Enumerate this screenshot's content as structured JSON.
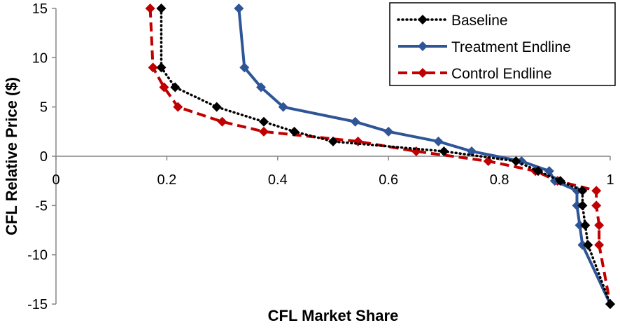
{
  "chart_data": {
    "type": "line",
    "title": "",
    "xlabel": "CFL Market Share",
    "ylabel": "CFL Relative Price ($)",
    "xlim": [
      0,
      1
    ],
    "ylim": [
      -15,
      15
    ],
    "x_ticks": [
      0,
      0.2,
      0.4,
      0.6,
      0.8,
      1
    ],
    "x_tick_labels": [
      "0",
      "0.2",
      "0.4",
      "0.6",
      "0.8",
      "1"
    ],
    "y_ticks": [
      15,
      10,
      5,
      0,
      -5,
      -10,
      -15
    ],
    "y_tick_labels": [
      "15",
      "10",
      "5",
      "0",
      "-5",
      "-10",
      "-15"
    ],
    "grid": false,
    "legend_position": "top-right",
    "series": [
      {
        "name": "Baseline",
        "color": "#000000",
        "line_style": "dotted",
        "marker": "diamond",
        "points": [
          {
            "x": 0.19,
            "y": 15
          },
          {
            "x": 0.19,
            "y": 9
          },
          {
            "x": 0.215,
            "y": 7
          },
          {
            "x": 0.29,
            "y": 5
          },
          {
            "x": 0.375,
            "y": 3.5
          },
          {
            "x": 0.43,
            "y": 2.5
          },
          {
            "x": 0.5,
            "y": 1.5
          },
          {
            "x": 0.7,
            "y": 0.5
          },
          {
            "x": 0.83,
            "y": -0.5
          },
          {
            "x": 0.87,
            "y": -1.5
          },
          {
            "x": 0.91,
            "y": -2.5
          },
          {
            "x": 0.95,
            "y": -3.5
          },
          {
            "x": 0.95,
            "y": -5
          },
          {
            "x": 0.955,
            "y": -7
          },
          {
            "x": 0.96,
            "y": -9
          },
          {
            "x": 1.0,
            "y": -15
          }
        ]
      },
      {
        "name": "Treatment Endline",
        "color": "#2e5597",
        "line_style": "solid",
        "marker": "diamond",
        "points": [
          {
            "x": 0.33,
            "y": 15
          },
          {
            "x": 0.34,
            "y": 9
          },
          {
            "x": 0.37,
            "y": 7
          },
          {
            "x": 0.41,
            "y": 5
          },
          {
            "x": 0.54,
            "y": 3.5
          },
          {
            "x": 0.6,
            "y": 2.5
          },
          {
            "x": 0.69,
            "y": 1.5
          },
          {
            "x": 0.75,
            "y": 0.5
          },
          {
            "x": 0.84,
            "y": -0.5
          },
          {
            "x": 0.89,
            "y": -1.5
          },
          {
            "x": 0.9,
            "y": -2.5
          },
          {
            "x": 0.94,
            "y": -3.5
          },
          {
            "x": 0.94,
            "y": -5
          },
          {
            "x": 0.945,
            "y": -7
          },
          {
            "x": 0.95,
            "y": -9
          },
          {
            "x": 1.0,
            "y": -15
          }
        ]
      },
      {
        "name": "Control Endline",
        "color": "#c00000",
        "line_style": "dashed",
        "marker": "diamond",
        "points": [
          {
            "x": 0.17,
            "y": 15
          },
          {
            "x": 0.175,
            "y": 9
          },
          {
            "x": 0.195,
            "y": 7
          },
          {
            "x": 0.22,
            "y": 5
          },
          {
            "x": 0.3,
            "y": 3.5
          },
          {
            "x": 0.375,
            "y": 2.5
          },
          {
            "x": 0.545,
            "y": 1.5
          },
          {
            "x": 0.65,
            "y": 0.5
          },
          {
            "x": 0.78,
            "y": -0.5
          },
          {
            "x": 0.865,
            "y": -1.5
          },
          {
            "x": 0.905,
            "y": -2.5
          },
          {
            "x": 0.975,
            "y": -3.5
          },
          {
            "x": 0.975,
            "y": -5
          },
          {
            "x": 0.98,
            "y": -7
          },
          {
            "x": 0.98,
            "y": -9
          },
          {
            "x": 1.0,
            "y": -15
          }
        ]
      }
    ]
  }
}
